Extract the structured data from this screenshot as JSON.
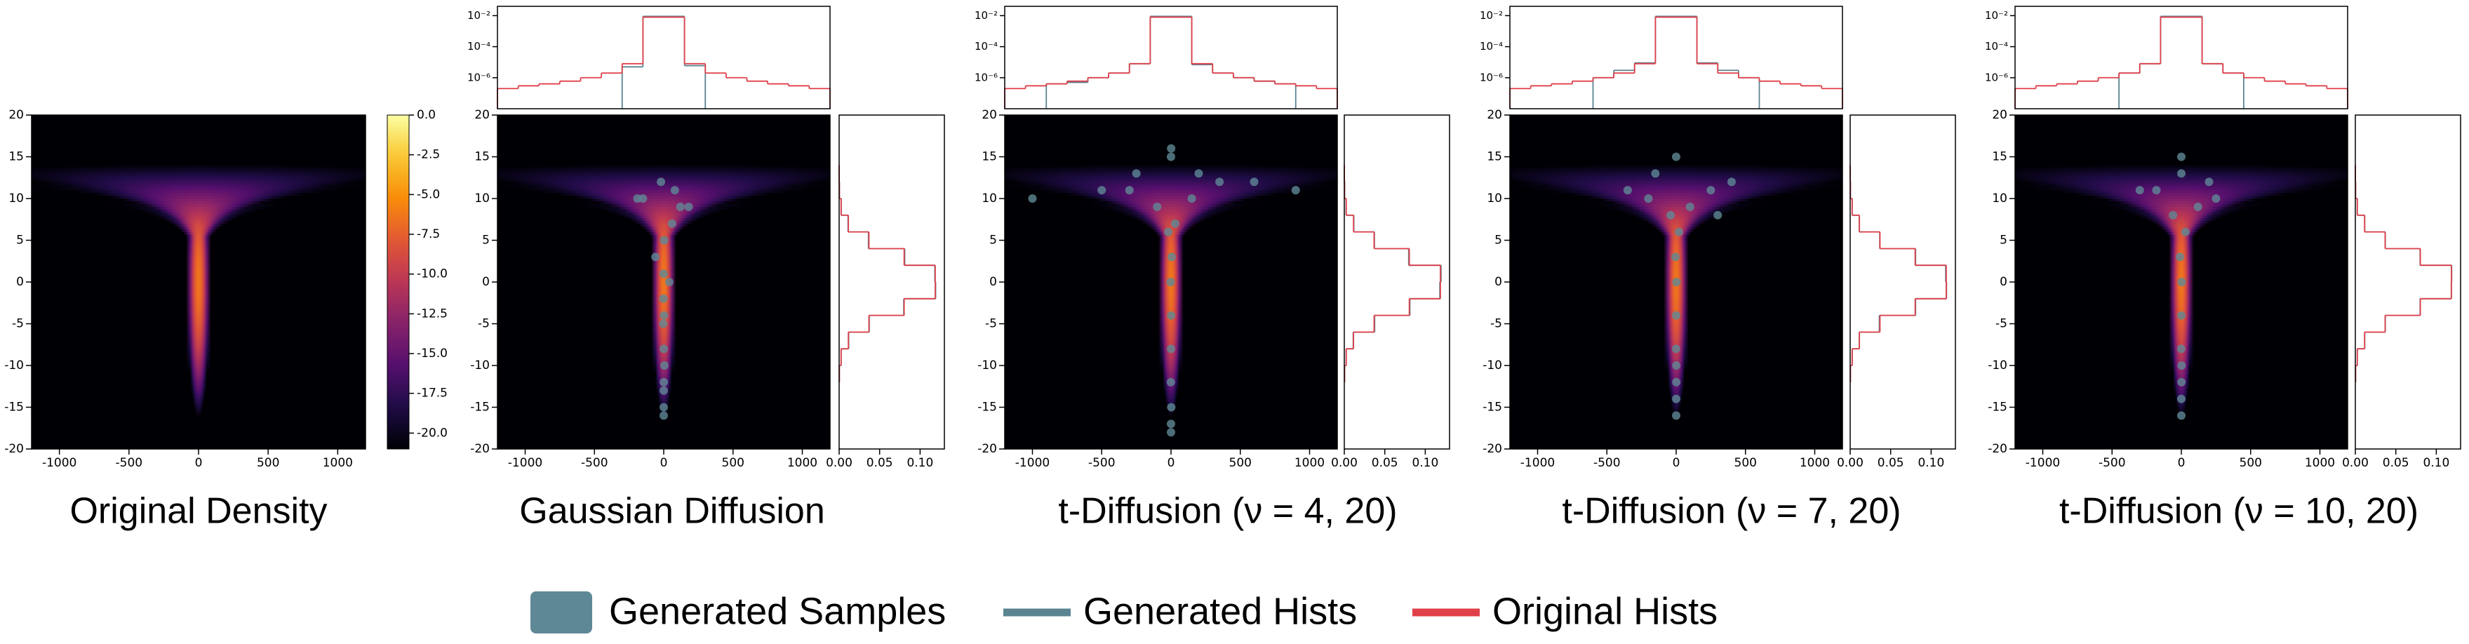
{
  "chart_data": [
    {
      "type": "heatmap",
      "title": "Original Density",
      "xlim": [
        -1200,
        1200
      ],
      "ylim": [
        -20,
        20
      ],
      "xticks": [
        -1000,
        -500,
        0,
        500,
        1000
      ],
      "yticks": [
        -20,
        -15,
        -10,
        -5,
        0,
        5,
        10,
        15,
        20
      ],
      "colorbar": {
        "colormap": "inferno",
        "lim": [
          -21,
          0
        ],
        "ticks": [
          {
            "value": 0,
            "label": "0.0"
          },
          -2.5,
          {
            "value": -5,
            "label": "-5.0"
          },
          -7.5,
          {
            "value": -10,
            "label": "-10.0"
          },
          -12.5,
          {
            "value": -15,
            "label": "-15.0"
          },
          -17.5,
          {
            "value": -20,
            "label": "-20.0"
          }
        ]
      }
    },
    {
      "type": "scatter",
      "title": "Gaussian Diffusion",
      "background_density": true,
      "xlim": [
        -1200,
        1200
      ],
      "ylim": [
        -20,
        20
      ],
      "xticks": [
        -1000,
        -500,
        0,
        500,
        1000
      ],
      "yticks": [
        -20,
        -15,
        -10,
        -5,
        0,
        5,
        10,
        15,
        20
      ],
      "samples": {
        "color": "#5f8896",
        "x": [
          0,
          5,
          -3,
          40,
          -60,
          120,
          -150,
          80,
          -20,
          3,
          -2,
          1,
          0,
          180,
          -190,
          60,
          0,
          2,
          -1,
          0
        ],
        "y": [
          -15,
          -10,
          -5,
          0,
          3,
          9,
          10,
          11,
          12,
          5,
          -2,
          -12,
          -16,
          9,
          10,
          7,
          -8,
          -4,
          1,
          -13
        ]
      },
      "top_hist": {
        "yscale": "log",
        "ylim": [
          1e-08,
          0.04
        ],
        "yticks": [
          {
            "value": 0.01,
            "label": "10⁻²"
          },
          {
            "value": 0.0001,
            "label": "10⁻⁴"
          },
          {
            "value": 1e-06,
            "label": "10⁻⁶"
          }
        ],
        "bins": [
          -1200,
          -1050,
          -900,
          -750,
          -600,
          -450,
          -300,
          -150,
          0,
          150,
          300,
          450,
          600,
          750,
          900,
          1050,
          1200
        ],
        "generated": {
          "color": "#5b8493",
          "values": [
            null,
            null,
            null,
            null,
            null,
            null,
            5e-06,
            0.009,
            0.009,
            6e-06,
            null,
            null,
            null,
            null,
            null,
            null
          ]
        },
        "original": {
          "color": "#e0404a",
          "values": [
            2e-07,
            3e-07,
            4e-07,
            6e-07,
            1e-06,
            2e-06,
            8e-06,
            0.008,
            0.008,
            8e-06,
            2e-06,
            1e-06,
            6e-07,
            4e-07,
            3e-07,
            2e-07
          ]
        }
      },
      "right_hist": {
        "xlim": [
          0,
          0.13
        ],
        "xticks": [
          {
            "value": 0,
            "label": "0.00"
          },
          {
            "value": 0.05,
            "label": "0.05"
          },
          {
            "value": 0.1,
            "label": "0.10"
          }
        ],
        "bins": [
          -12,
          -10,
          -8,
          -6,
          -4,
          -2,
          0,
          2,
          4,
          6,
          8,
          10,
          12,
          14
        ],
        "generated": {
          "color": "#5b8493",
          "values": [
            0.0002,
            0.0025,
            0.0118,
            0.0372,
            0.0798,
            0.1192,
            0.1182,
            0.081,
            0.0362,
            0.011,
            0.0026,
            0.0003,
            0.0001
          ]
        },
        "original": {
          "color": "#e0404a",
          "values": [
            0.0003,
            0.0024,
            0.0114,
            0.0368,
            0.0803,
            0.1187,
            0.1187,
            0.0803,
            0.0368,
            0.0114,
            0.0024,
            0.0003,
            0.0001
          ]
        }
      }
    },
    {
      "type": "scatter",
      "title": "t-Diffusion (ν = 4, 20)",
      "background_density": true,
      "xlim": [
        -1200,
        1200
      ],
      "ylim": [
        -20,
        20
      ],
      "xticks": [
        -1000,
        -500,
        0,
        500,
        1000
      ],
      "yticks": [
        -20,
        -15,
        -10,
        -5,
        0,
        5,
        10,
        15,
        20
      ],
      "samples": {
        "color": "#5f8896",
        "x": [
          0,
          2,
          -1,
          0,
          1,
          -3,
          5,
          -20,
          30,
          -100,
          150,
          -300,
          350,
          -500,
          600,
          900,
          -1000,
          200,
          -250,
          0,
          0,
          1
        ],
        "y": [
          -18,
          -15,
          -12,
          -8,
          -4,
          0,
          3,
          6,
          7,
          9,
          10,
          11,
          12,
          11,
          12,
          11,
          10,
          13,
          13,
          -17,
          15,
          16
        ]
      },
      "top_hist": {
        "yscale": "log",
        "ylim": [
          1e-08,
          0.04
        ],
        "yticks": [
          {
            "value": 0.01,
            "label": "10⁻²"
          },
          {
            "value": 0.0001,
            "label": "10⁻⁴"
          },
          {
            "value": 1e-06,
            "label": "10⁻⁶"
          }
        ],
        "bins": [
          -1200,
          -1050,
          -900,
          -750,
          -600,
          -450,
          -300,
          -150,
          0,
          150,
          300,
          450,
          600,
          750,
          900,
          1050,
          1200
        ],
        "generated": {
          "color": "#5b8493",
          "values": [
            null,
            null,
            4e-07,
            5e-07,
            1e-06,
            2e-06,
            8e-06,
            0.009,
            0.009,
            7e-06,
            2e-06,
            1e-06,
            6e-07,
            4e-07,
            null,
            null
          ]
        },
        "original": {
          "color": "#e0404a",
          "values": [
            2e-07,
            3e-07,
            4e-07,
            6e-07,
            1e-06,
            2e-06,
            8e-06,
            0.008,
            0.008,
            8e-06,
            2e-06,
            1e-06,
            6e-07,
            4e-07,
            3e-07,
            2e-07
          ]
        }
      },
      "right_hist": {
        "xlim": [
          0,
          0.13
        ],
        "xticks": [
          {
            "value": 0,
            "label": "0.00"
          },
          {
            "value": 0.05,
            "label": "0.05"
          },
          {
            "value": 0.1,
            "label": "0.10"
          }
        ],
        "bins": [
          -12,
          -10,
          -8,
          -6,
          -4,
          -2,
          0,
          2,
          4,
          6,
          8,
          10,
          12,
          14
        ],
        "generated": {
          "color": "#5b8493",
          "values": [
            0.0004,
            0.0023,
            0.011,
            0.0375,
            0.081,
            0.118,
            0.1195,
            0.0795,
            0.0372,
            0.0118,
            0.0022,
            0.0004,
            0.0001
          ]
        },
        "original": {
          "color": "#e0404a",
          "values": [
            0.0003,
            0.0024,
            0.0114,
            0.0368,
            0.0803,
            0.1187,
            0.1187,
            0.0803,
            0.0368,
            0.0114,
            0.0024,
            0.0003,
            0.0001
          ]
        }
      }
    },
    {
      "type": "scatter",
      "title": "t-Diffusion (ν = 7, 20)",
      "background_density": true,
      "xlim": [
        -1200,
        1200
      ],
      "ylim": [
        -20,
        20
      ],
      "xticks": [
        -1000,
        -500,
        0,
        500,
        1000
      ],
      "yticks": [
        -20,
        -15,
        -10,
        -5,
        0,
        5,
        10,
        15,
        20
      ],
      "samples": {
        "color": "#5f8896",
        "x": [
          0,
          1,
          -1,
          0,
          2,
          -5,
          20,
          -40,
          100,
          -200,
          250,
          -350,
          400,
          -150,
          0,
          300,
          0,
          1
        ],
        "y": [
          -16,
          -12,
          -8,
          -4,
          0,
          3,
          6,
          8,
          9,
          10,
          11,
          11,
          12,
          13,
          15,
          8,
          -14,
          -10
        ]
      },
      "top_hist": {
        "yscale": "log",
        "ylim": [
          1e-08,
          0.04
        ],
        "yticks": [
          {
            "value": 0.01,
            "label": "10⁻²"
          },
          {
            "value": 0.0001,
            "label": "10⁻⁴"
          },
          {
            "value": 1e-06,
            "label": "10⁻⁶"
          }
        ],
        "bins": [
          -1200,
          -1050,
          -900,
          -750,
          -600,
          -450,
          -300,
          -150,
          0,
          150,
          300,
          450,
          600,
          750,
          900,
          1050,
          1200
        ],
        "generated": {
          "color": "#5b8493",
          "values": [
            null,
            null,
            null,
            null,
            1e-06,
            3e-06,
            9e-06,
            0.009,
            0.009,
            9e-06,
            3e-06,
            1e-06,
            null,
            null,
            null,
            null
          ]
        },
        "original": {
          "color": "#e0404a",
          "values": [
            2e-07,
            3e-07,
            4e-07,
            6e-07,
            1e-06,
            2e-06,
            8e-06,
            0.008,
            0.008,
            8e-06,
            2e-06,
            1e-06,
            6e-07,
            4e-07,
            3e-07,
            2e-07
          ]
        }
      },
      "right_hist": {
        "xlim": [
          0,
          0.13
        ],
        "xticks": [
          {
            "value": 0,
            "label": "0.00"
          },
          {
            "value": 0.05,
            "label": "0.05"
          },
          {
            "value": 0.1,
            "label": "0.10"
          }
        ],
        "bins": [
          -12,
          -10,
          -8,
          -6,
          -4,
          -2,
          0,
          2,
          4,
          6,
          8,
          10,
          12,
          14
        ],
        "generated": {
          "color": "#5b8493",
          "values": [
            0.0003,
            0.0026,
            0.0112,
            0.036,
            0.0808,
            0.119,
            0.118,
            0.0808,
            0.0365,
            0.0112,
            0.0025,
            0.0003,
            0.0001
          ]
        },
        "original": {
          "color": "#e0404a",
          "values": [
            0.0003,
            0.0024,
            0.0114,
            0.0368,
            0.0803,
            0.1187,
            0.1187,
            0.0803,
            0.0368,
            0.0114,
            0.0024,
            0.0003,
            0.0001
          ]
        }
      }
    },
    {
      "type": "scatter",
      "title": "t-Diffusion (ν = 10, 20)",
      "background_density": true,
      "xlim": [
        -1200,
        1200
      ],
      "ylim": [
        -20,
        20
      ],
      "xticks": [
        -1000,
        -500,
        0,
        500,
        1000
      ],
      "yticks": [
        -20,
        -15,
        -10,
        -5,
        0,
        5,
        10,
        15,
        20
      ],
      "samples": {
        "color": "#5f8896",
        "x": [
          0,
          1,
          -1,
          0,
          3,
          -10,
          30,
          -60,
          120,
          -180,
          250,
          -300,
          200,
          0,
          0,
          0,
          2
        ],
        "y": [
          -16,
          -12,
          -8,
          -4,
          0,
          3,
          6,
          8,
          9,
          11,
          10,
          11,
          12,
          15,
          13,
          -14,
          -10
        ]
      },
      "top_hist": {
        "yscale": "log",
        "ylim": [
          1e-08,
          0.04
        ],
        "yticks": [
          {
            "value": 0.01,
            "label": "10⁻²"
          },
          {
            "value": 0.0001,
            "label": "10⁻⁴"
          },
          {
            "value": 1e-06,
            "label": "10⁻⁶"
          }
        ],
        "bins": [
          -1200,
          -1050,
          -900,
          -750,
          -600,
          -450,
          -300,
          -150,
          0,
          150,
          300,
          450,
          600,
          750,
          900,
          1050,
          1200
        ],
        "generated": {
          "color": "#5b8493",
          "values": [
            null,
            null,
            null,
            null,
            null,
            2e-06,
            8e-06,
            0.009,
            0.009,
            8e-06,
            2e-06,
            null,
            null,
            null,
            null,
            null
          ]
        },
        "original": {
          "color": "#e0404a",
          "values": [
            2e-07,
            3e-07,
            4e-07,
            6e-07,
            1e-06,
            2e-06,
            8e-06,
            0.008,
            0.008,
            8e-06,
            2e-06,
            1e-06,
            6e-07,
            4e-07,
            3e-07,
            2e-07
          ]
        }
      },
      "right_hist": {
        "xlim": [
          0,
          0.13
        ],
        "xticks": [
          {
            "value": 0,
            "label": "0.00"
          },
          {
            "value": 0.05,
            "label": "0.05"
          },
          {
            "value": 0.1,
            "label": "0.10"
          }
        ],
        "bins": [
          -12,
          -10,
          -8,
          -6,
          -4,
          -2,
          0,
          2,
          4,
          6,
          8,
          10,
          12,
          14
        ],
        "generated": {
          "color": "#5b8493",
          "values": [
            0.0003,
            0.0024,
            0.0116,
            0.037,
            0.08,
            0.1185,
            0.119,
            0.08,
            0.037,
            0.0116,
            0.0024,
            0.0003,
            0.0001
          ]
        },
        "original": {
          "color": "#e0404a",
          "values": [
            0.0003,
            0.0024,
            0.0114,
            0.0368,
            0.0803,
            0.1187,
            0.1187,
            0.0803,
            0.0368,
            0.0114,
            0.0024,
            0.0003,
            0.0001
          ]
        }
      }
    }
  ],
  "legend": [
    {
      "label": "Generated Samples",
      "color": "#5f8896",
      "kind": "patch"
    },
    {
      "label": "Generated Hists",
      "color": "#5b8493",
      "kind": "line"
    },
    {
      "label": "Original Hists",
      "color": "#e0404a",
      "kind": "line"
    }
  ]
}
